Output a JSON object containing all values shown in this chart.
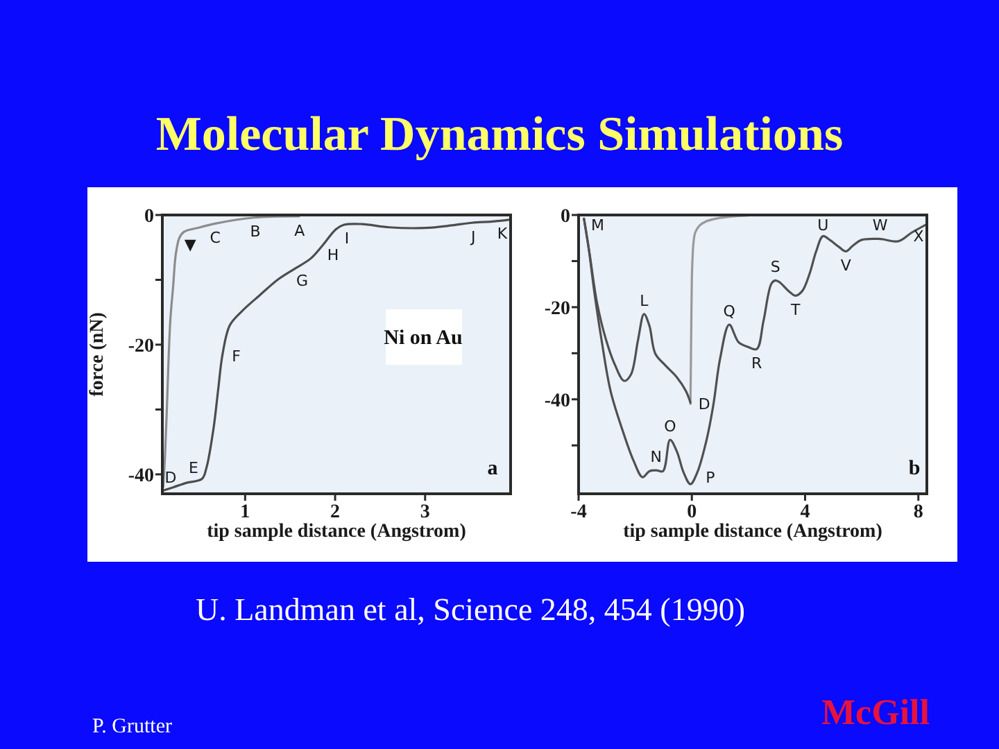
{
  "chart_data": [
    {
      "type": "line",
      "title": "Molecular Dynamics Simulations",
      "xlabel": "tip sample distance (Angstrom)",
      "ylabel": "force (nN)",
      "xlim": [
        0.08,
        3.95
      ],
      "ylim": [
        -43,
        0
      ],
      "xticks": [
        1,
        2,
        3
      ],
      "yticks": [
        0,
        {
          "value": -10,
          "label": null
        },
        -20,
        {
          "value": -30,
          "label": null
        },
        -40
      ],
      "series": [
        {
          "color": "#8c8c8c",
          "x": [
            1.6,
            1.1,
            0.64,
            0.5,
            0.32,
            0.27,
            0.23,
            0.2,
            0.17,
            0.15,
            0.13,
            0.11,
            0.09
          ],
          "values": [
            -0.2,
            -0.4,
            -1.4,
            -1.9,
            -2.6,
            -3.5,
            -6,
            -11,
            -16,
            -22,
            -30,
            -37,
            -42
          ]
        },
        {
          "color": "#4d4d4d",
          "x": [
            0.09,
            0.2,
            0.35,
            0.52,
            0.57,
            0.65,
            0.7,
            0.75,
            0.83,
            0.96,
            1.16,
            1.37,
            1.55,
            1.73,
            1.86,
            2.01,
            2.1,
            2.3,
            2.6,
            3.0,
            3.3,
            3.52,
            3.75,
            3.95
          ],
          "values": [
            -42.5,
            -42,
            -41.3,
            -40.7,
            -39,
            -32.8,
            -27,
            -21.4,
            -17,
            -14.9,
            -12.4,
            -9.9,
            -8.3,
            -6.7,
            -4.7,
            -2.2,
            -1.5,
            -1.4,
            -1.9,
            -2.0,
            -1.6,
            -1.2,
            -1.0,
            -0.7
          ]
        }
      ],
      "annotations": [
        {
          "text": "▼",
          "x": 0.32,
          "y": -2.6
        },
        {
          "text": "A",
          "x": 1.6,
          "y": -0.2
        },
        {
          "text": "B",
          "x": 1.1,
          "y": -0.4
        },
        {
          "text": "C",
          "x": 0.64,
          "y": -1.4
        },
        {
          "text": "D",
          "x": 0.09,
          "y": -42.5
        },
        {
          "text": "E",
          "x": 0.52,
          "y": -40.7
        },
        {
          "text": "F",
          "x": 0.75,
          "y": -21.4
        },
        {
          "text": "G",
          "x": 1.55,
          "y": -8.3
        },
        {
          "text": "H",
          "x": 1.86,
          "y": -4.7
        },
        {
          "text": "I",
          "x": 2.1,
          "y": -1.5
        },
        {
          "text": "J",
          "x": 3.52,
          "y": -1.2
        },
        {
          "text": "K",
          "x": 3.95,
          "y": -0.7
        },
        "Ni on Au",
        "a",
        "U. Landman et al, Science 248, 454 (1990)",
        "P. Grutter",
        "McGill"
      ]
    },
    {
      "type": "line",
      "xlabel": "tip sample distance (Angstrom)",
      "xlim": [
        -4,
        8.3
      ],
      "ylim": [
        -60.5,
        0
      ],
      "xticks": [
        -4,
        0,
        4,
        8
      ],
      "yticks": [
        0,
        {
          "value": -10,
          "label": null
        },
        -20,
        {
          "value": -30,
          "label": null
        },
        -40,
        {
          "value": -50,
          "label": null
        }
      ],
      "series": [
        {
          "color": "#999999",
          "x": [
            2.0,
            1.3,
            0.84,
            0.5,
            0.27,
            0.12,
            0.06,
            0.02,
            0,
            -0.02,
            -0.04,
            -0.05
          ],
          "values": [
            -0.1,
            -0.4,
            -0.8,
            -1.4,
            -2.3,
            -3.8,
            -5.9,
            -10,
            -14,
            -24,
            -36,
            -41
          ]
        },
        {
          "color": "#505050",
          "x": [
            -3.81,
            -3.6,
            -3.35,
            -3.03,
            -2.71,
            -2.39,
            -2.15,
            -1.9,
            -1.69,
            -1.5,
            -1.29,
            -0.94,
            -0.53,
            -0.21,
            -0.05
          ],
          "values": [
            -0.8,
            -8.9,
            -19.0,
            -27.1,
            -32.6,
            -36.0,
            -34.6,
            -27.1,
            -21.5,
            -24.0,
            -30.1,
            -32.6,
            -35.2,
            -38.2,
            -40.7
          ]
        },
        {
          "color": "#505050",
          "x": [
            -3.81,
            -3.65,
            -3.44,
            -3.19,
            -2.87,
            -2.47,
            -2.06,
            -1.74,
            -1.5,
            -1.26,
            -1.02,
            -0.77,
            -0.53,
            -0.29,
            -0.05,
            0.19,
            0.52,
            0.76,
            1.0,
            1.32,
            1.65,
            1.97,
            2.29,
            2.53,
            2.81,
            2.95,
            3.1,
            3.42,
            3.66,
            3.9,
            4.15,
            4.39,
            4.63,
            4.87,
            5.19,
            5.44,
            5.68,
            6.0,
            6.65,
            7.29,
            7.77,
            8.3
          ],
          "values": [
            -0.8,
            -6.9,
            -16.9,
            -27.1,
            -38.2,
            -46.3,
            -53.3,
            -56.9,
            -55.6,
            -55.4,
            -55.6,
            -48.8,
            -51.3,
            -55.9,
            -58.4,
            -55.9,
            -48.8,
            -41.2,
            -31.1,
            -23.8,
            -27.6,
            -28.6,
            -29.1,
            -23.0,
            -14.9,
            -14.2,
            -14.6,
            -16.5,
            -17.5,
            -16.5,
            -12.9,
            -7.9,
            -4.6,
            -5.4,
            -6.9,
            -7.9,
            -6.7,
            -5.4,
            -5.2,
            -5.7,
            -3.8,
            -2.0
          ]
        }
      ],
      "annotations": [
        {
          "text": "M",
          "x": -3.81,
          "y": -0.8
        },
        {
          "text": "L",
          "x": -1.69,
          "y": -21.5
        },
        {
          "text": "D",
          "x": -0.05,
          "y": -41
        },
        {
          "text": "N",
          "x": -1.26,
          "y": -55.4
        },
        {
          "text": "O",
          "x": -0.77,
          "y": -48.8
        },
        {
          "text": "P",
          "x": 0.19,
          "y": -55.9
        },
        {
          "text": "Q",
          "x": 1.32,
          "y": -23.8
        },
        {
          "text": "R",
          "x": 2.29,
          "y": -29.1
        },
        {
          "text": "S",
          "x": 2.95,
          "y": -14.2
        },
        {
          "text": "T",
          "x": 3.66,
          "y": -17.5
        },
        {
          "text": "U",
          "x": 4.63,
          "y": -4.6
        },
        {
          "text": "V",
          "x": 5.44,
          "y": -7.9
        },
        {
          "text": "W",
          "x": 6.65,
          "y": -5.2
        },
        {
          "text": "X",
          "x": 8.3,
          "y": -2.0
        },
        "b"
      ]
    }
  ]
}
